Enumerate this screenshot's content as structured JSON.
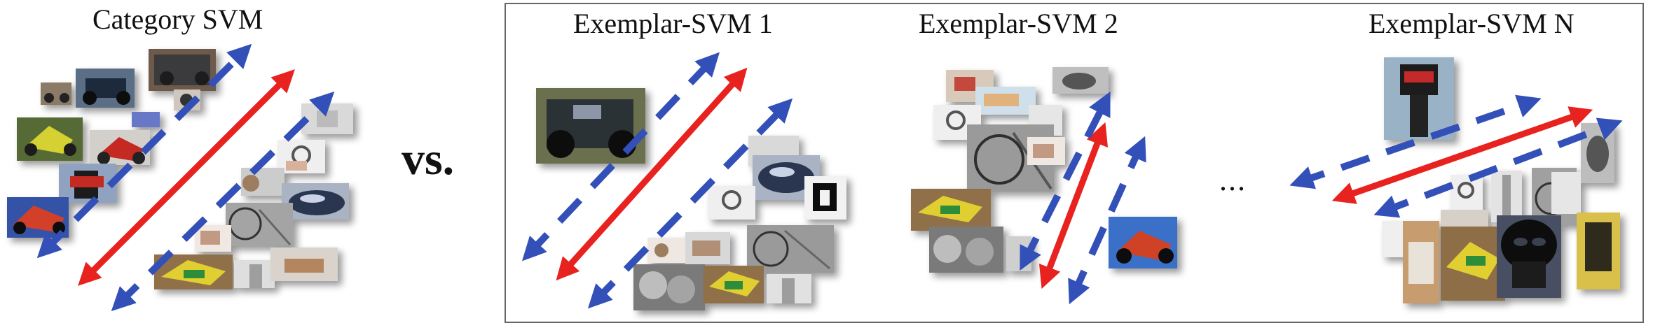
{
  "category_panel": {
    "title": "Category SVM"
  },
  "separator": {
    "vs_label": "vs."
  },
  "exemplar_group": {
    "panels": [
      {
        "title": "Exemplar-SVM 1"
      },
      {
        "title": "Exemplar-SVM 2"
      },
      {
        "title": "Exemplar-SVM N"
      }
    ],
    "ellipsis": "..."
  },
  "colors": {
    "decision_boundary": "#e8221f",
    "margin": "#3350b8",
    "frame": "#666666"
  }
}
